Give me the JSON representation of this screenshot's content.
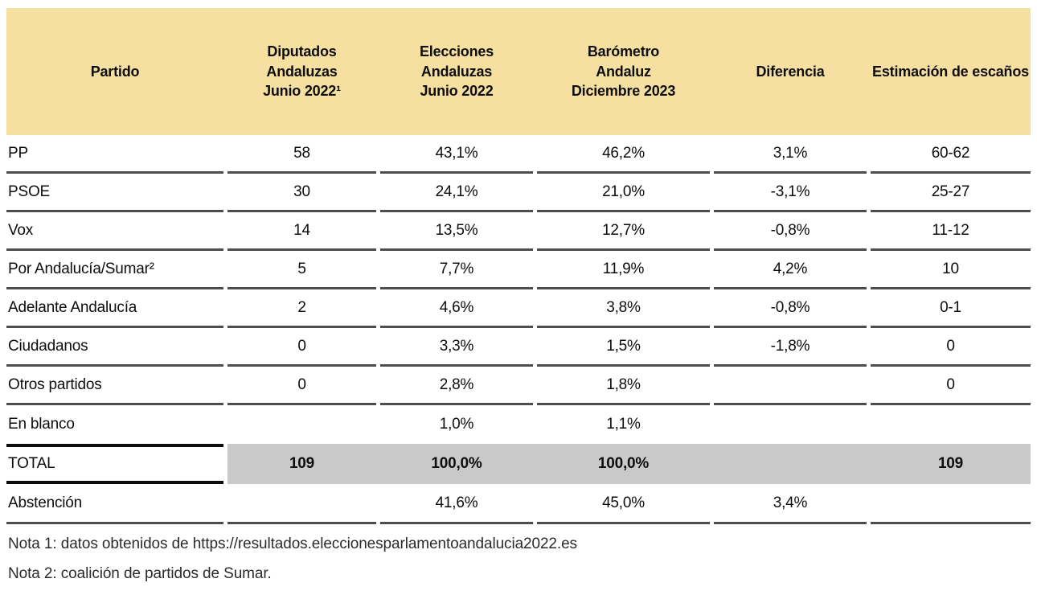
{
  "chart_data": {
    "type": "table",
    "columns": [
      "Partido",
      "Diputados\nAndaluzas\nJunio 2022¹",
      "Elecciones\nAndaluzas\nJunio 2022",
      "Barómetro\nAndaluz\nDiciembre 2023",
      "Diferencia",
      "Estimación de escaños"
    ],
    "rows": [
      {
        "name": "PP",
        "cells": [
          "58",
          "43,1%",
          "46,2%",
          "3,1%",
          "60-62"
        ]
      },
      {
        "name": "PSOE",
        "cells": [
          "30",
          "24,1%",
          "21,0%",
          "-3,1%",
          "25-27"
        ]
      },
      {
        "name": "Vox",
        "cells": [
          "14",
          "13,5%",
          "12,7%",
          "-0,8%",
          "11-12"
        ]
      },
      {
        "name": "Por Andalucía/Sumar²",
        "cells": [
          "5",
          "7,7%",
          "11,9%",
          "4,2%",
          "10"
        ]
      },
      {
        "name": "Adelante Andalucía",
        "cells": [
          "2",
          "4,6%",
          "3,8%",
          "-0,8%",
          "0-1"
        ]
      },
      {
        "name": "Ciudadanos",
        "cells": [
          "0",
          "3,3%",
          "1,5%",
          "-1,8%",
          "0"
        ]
      },
      {
        "name": "Otros partidos",
        "cells": [
          "0",
          "2,8%",
          "1,8%",
          "",
          "0"
        ]
      },
      {
        "name": "En blanco",
        "cells": [
          "",
          "1,0%",
          "1,1%",
          "",
          ""
        ]
      }
    ],
    "total_row": {
      "name": "TOTAL",
      "cells": [
        "109",
        "100,0%",
        "100,0%",
        "",
        "109"
      ]
    },
    "abstencion_row": {
      "name": "Abstención",
      "cells": [
        "",
        "41,6%",
        "45,0%",
        "3,4%",
        ""
      ]
    },
    "notes": [
      "Nota 1: datos obtenidos de https://resultados.eleccionesparlamentoandalucia2022.es",
      "Nota 2: coalición de partidos de Sumar."
    ],
    "layout_hints": {
      "header_bg": "#F5E0A1",
      "total_row_bg": "#C9C9C9",
      "row_line_color": "#4d4d4d",
      "total_border_color": "#0d0d0d"
    }
  }
}
